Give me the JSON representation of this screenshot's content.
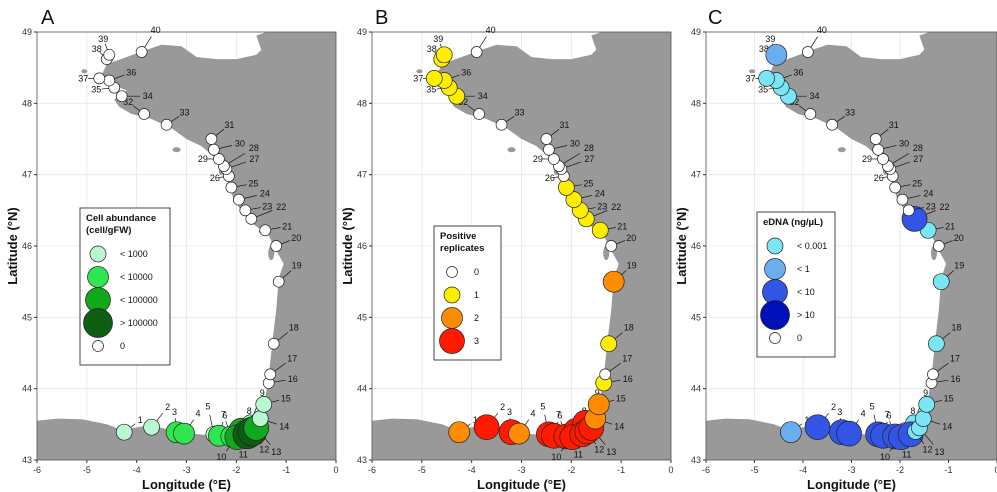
{
  "figure": {
    "panels": [
      {
        "letter": "A",
        "legend": {
          "title_lines": [
            "Cell abundance",
            "(cell/gFW)"
          ],
          "entries": [
            {
              "label": "< 1000",
              "color": "#b9f7d0"
            },
            {
              "label": "< 10000",
              "color": "#2ee650"
            },
            {
              "label": "< 100000",
              "color": "#12a81c"
            },
            {
              "label": "> 100000",
              "color": "#0d5e12"
            },
            {
              "label": "0",
              "color": "#ffffff"
            }
          ]
        },
        "station_classes": {
          "1": 1,
          "2": 1,
          "3": 2,
          "4": 2,
          "5": 1,
          "6": 2,
          "7": 2,
          "8": 3,
          "9": 1,
          "10": 3,
          "11": 4,
          "12": 4,
          "13": 3,
          "14": 1,
          "15": 1
        }
      },
      {
        "letter": "B",
        "legend": {
          "title_lines": [
            "Positive",
            "replicates"
          ],
          "entries": [
            {
              "label": "0",
              "color": "#ffffff"
            },
            {
              "label": "1",
              "color": "#ffee00"
            },
            {
              "label": "2",
              "color": "#ff8c00"
            },
            {
              "label": "3",
              "color": "#ff1a00"
            }
          ]
        },
        "station_classes": {
          "1": 2,
          "2": 3,
          "3": 3,
          "4": 2,
          "5": 3,
          "6": 3,
          "7": 3,
          "8": 3,
          "9": 3,
          "10": 3,
          "11": 3,
          "12": 3,
          "13": 3,
          "14": 2,
          "15": 2,
          "16": 1,
          "18": 1,
          "19": 2,
          "21": 1,
          "22": 1,
          "23": 1,
          "24": 1,
          "25": 1,
          "34": 1,
          "35": 1,
          "36": 1,
          "37": 1,
          "38": 1,
          "39": 1
        }
      },
      {
        "letter": "C",
        "legend": {
          "title_lines": [
            "eDNA (ng/µL)"
          ],
          "entries": [
            {
              "label": "< 0.001",
              "color": "#7ae6f5"
            },
            {
              "label": "< 1",
              "color": "#6aaef0"
            },
            {
              "label": "< 10",
              "color": "#3355e6"
            },
            {
              "label": "> 10",
              "color": "#0010b8"
            },
            {
              "label": "0",
              "color": "#ffffff"
            }
          ]
        },
        "station_classes": {
          "1": 2,
          "2": 3,
          "3": 3,
          "4": 3,
          "5": 3,
          "6": 3,
          "7": 3,
          "8": 1,
          "9": 1,
          "10": 3,
          "11": 3,
          "12": 1,
          "13": 1,
          "14": 1,
          "15": 1,
          "18": 1,
          "19": 1,
          "21": 1,
          "22": 3,
          "34": 1,
          "35": 1,
          "36": 1,
          "37": 1,
          "39": 2
        }
      }
    ],
    "x_axis": {
      "label": "Longitude (°E)",
      "ticks": [
        "-6",
        "-5",
        "-4",
        "-3",
        "-2",
        "-1",
        "0"
      ],
      "range": [
        -6,
        0
      ]
    },
    "y_axis": {
      "label": "Latitude (°N)",
      "ticks": [
        "43",
        "44",
        "45",
        "46",
        "47",
        "48",
        "49"
      ],
      "range": [
        43,
        49
      ]
    },
    "land_color": "#999999",
    "sea_color": "#ffffff",
    "stations": [
      {
        "id": "1",
        "lon": -4.25,
        "lat": 43.39
      },
      {
        "id": "2",
        "lon": -3.7,
        "lat": 43.46
      },
      {
        "id": "3",
        "lon": -3.2,
        "lat": 43.39
      },
      {
        "id": "4",
        "lon": -3.05,
        "lat": 43.37
      },
      {
        "id": "5",
        "lon": -2.45,
        "lat": 43.36
      },
      {
        "id": "6",
        "lon": -2.35,
        "lat": 43.34
      },
      {
        "id": "7",
        "lon": -2.1,
        "lat": 43.33
      },
      {
        "id": "8",
        "lon": -1.9,
        "lat": 43.41
      },
      {
        "id": "9",
        "lon": -1.72,
        "lat": 43.52
      },
      {
        "id": "10",
        "lon": -1.98,
        "lat": 43.32
      },
      {
        "id": "11",
        "lon": -1.78,
        "lat": 43.36
      },
      {
        "id": "12",
        "lon": -1.68,
        "lat": 43.4
      },
      {
        "id": "13",
        "lon": -1.6,
        "lat": 43.45
      },
      {
        "id": "14",
        "lon": -1.52,
        "lat": 43.58
      },
      {
        "id": "15",
        "lon": -1.45,
        "lat": 43.78
      },
      {
        "id": "16",
        "lon": -1.35,
        "lat": 44.08
      },
      {
        "id": "17",
        "lon": -1.32,
        "lat": 44.2
      },
      {
        "id": "18",
        "lon": -1.25,
        "lat": 44.63
      },
      {
        "id": "19",
        "lon": -1.15,
        "lat": 45.5
      },
      {
        "id": "20",
        "lon": -1.2,
        "lat": 46.0
      },
      {
        "id": "21",
        "lon": -1.42,
        "lat": 46.22
      },
      {
        "id": "22",
        "lon": -1.7,
        "lat": 46.38
      },
      {
        "id": "23",
        "lon": -1.82,
        "lat": 46.5
      },
      {
        "id": "24",
        "lon": -1.95,
        "lat": 46.65
      },
      {
        "id": "25",
        "lon": -2.1,
        "lat": 46.82
      },
      {
        "id": "26",
        "lon": -2.15,
        "lat": 46.98
      },
      {
        "id": "27",
        "lon": -2.2,
        "lat": 47.08
      },
      {
        "id": "28",
        "lon": -2.25,
        "lat": 47.12
      },
      {
        "id": "29",
        "lon": -2.35,
        "lat": 47.22
      },
      {
        "id": "30",
        "lon": -2.45,
        "lat": 47.35
      },
      {
        "id": "31",
        "lon": -2.5,
        "lat": 47.5
      },
      {
        "id": "32",
        "lon": -3.85,
        "lat": 47.85
      },
      {
        "id": "33",
        "lon": -3.4,
        "lat": 47.7
      },
      {
        "id": "34",
        "lon": -4.3,
        "lat": 48.1
      },
      {
        "id": "35",
        "lon": -4.45,
        "lat": 48.22
      },
      {
        "id": "36",
        "lon": -4.55,
        "lat": 48.32
      },
      {
        "id": "37",
        "lon": -4.75,
        "lat": 48.35
      },
      {
        "id": "38",
        "lon": -4.6,
        "lat": 48.62
      },
      {
        "id": "39",
        "lon": -4.55,
        "lat": 48.68
      },
      {
        "id": "40",
        "lon": -3.9,
        "lat": 48.72
      }
    ]
  }
}
